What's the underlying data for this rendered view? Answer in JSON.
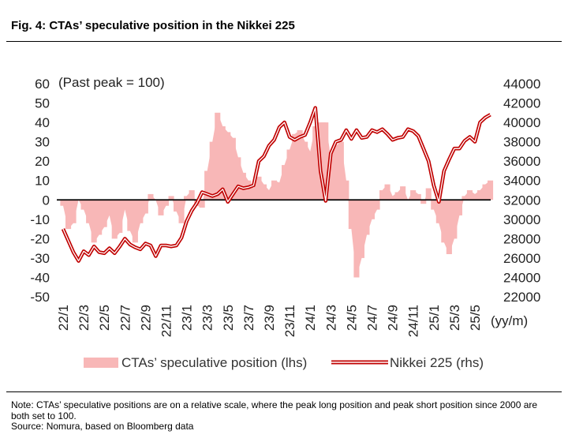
{
  "title": "Fig. 4: CTAs’ speculative position in the Nikkei 225",
  "chart_data": {
    "type": "area+line",
    "annotation": "(Past peak = 100)",
    "x_unit_label": "(yy/m)",
    "x_labels": [
      "22/1",
      "22/3",
      "22/5",
      "22/7",
      "22/9",
      "22/11",
      "23/1",
      "23/3",
      "23/5",
      "23/7",
      "23/9",
      "23/11",
      "24/1",
      "24/3",
      "24/5",
      "24/7",
      "24/9",
      "24/11",
      "25/1",
      "25/3",
      "25/5"
    ],
    "y_left_ticks": [
      60,
      50,
      40,
      30,
      20,
      10,
      0,
      -10,
      -20,
      -30,
      -40,
      -50
    ],
    "y_right_ticks": [
      44000,
      42000,
      40000,
      38000,
      36000,
      34000,
      32000,
      30000,
      28000,
      26000,
      24000,
      22000
    ],
    "ylim_left": [
      -50,
      60
    ],
    "ylim_right": [
      22000,
      44000
    ],
    "series": [
      {
        "name": "CTAs’ speculative position (lhs)",
        "axis": "left",
        "type": "area",
        "color": "#f8b7b7",
        "x": [
          0,
          0.5,
          1,
          1.5,
          2,
          2.5,
          3,
          3.5,
          4,
          4.5,
          5,
          5.5,
          6,
          6.5,
          7,
          7.5,
          8,
          8.5,
          9,
          9.5,
          10,
          10.5,
          11,
          11.5,
          12,
          12.5,
          13,
          13.5,
          14,
          14.5,
          15,
          15.5,
          16,
          16.5,
          17,
          17.5,
          18,
          18.5,
          19,
          19.5,
          20,
          20.5,
          21,
          21.5,
          22,
          22.5,
          23,
          23.5,
          24,
          24.5,
          25,
          25.5,
          26,
          26.5,
          27,
          27.5,
          28,
          28.5,
          29,
          29.5,
          30,
          30.5,
          31,
          31.5,
          32,
          32.5,
          33,
          33.5,
          34,
          34.5,
          35,
          35.5,
          36,
          36.5,
          37,
          37.5,
          38,
          38.5,
          39,
          39.5,
          40,
          40.5,
          41,
          41.5
        ],
        "values": [
          -3,
          -15,
          -12,
          0,
          -5,
          -12,
          -22,
          -18,
          -14,
          -8,
          -20,
          -17,
          -5,
          -16,
          -22,
          -12,
          -7,
          3,
          0,
          -8,
          -3,
          2,
          -6,
          -12,
          2,
          5,
          -3,
          -4,
          15,
          30,
          45,
          38,
          35,
          32,
          22,
          14,
          10,
          6,
          12,
          8,
          5,
          10,
          9,
          18,
          26,
          34,
          36,
          30,
          25,
          38,
          40,
          40,
          22,
          28,
          30,
          10,
          -15,
          -40,
          -30,
          -18,
          -10,
          -5,
          5,
          8,
          2,
          4,
          7,
          0,
          5,
          3,
          -2,
          6,
          -5,
          -12,
          -22,
          -28,
          -20,
          -8,
          2,
          5,
          3,
          5,
          8,
          10
        ]
      },
      {
        "name": "Nikkei 225 (rhs)",
        "axis": "right",
        "type": "line",
        "color": "#c00000",
        "x": [
          0,
          0.5,
          1,
          1.5,
          2,
          2.5,
          3,
          3.5,
          4,
          4.5,
          5,
          5.5,
          6,
          6.5,
          7,
          7.5,
          8,
          8.5,
          9,
          9.5,
          10,
          10.5,
          11,
          11.5,
          12,
          12.5,
          13,
          13.5,
          14,
          14.5,
          15,
          15.5,
          16,
          16.5,
          17,
          17.5,
          18,
          18.5,
          19,
          19.5,
          20,
          20.5,
          21,
          21.5,
          22,
          22.5,
          23,
          23.5,
          24,
          24.5,
          25,
          25.5,
          26,
          26.5,
          27,
          27.5,
          28,
          28.5,
          29,
          29.5,
          30,
          30.5,
          31,
          31.5,
          32,
          32.5,
          33,
          33.5,
          34,
          34.5,
          35,
          35.5,
          36,
          36.5,
          37,
          37.5,
          38,
          38.5,
          39,
          39.5,
          40,
          40.5,
          41,
          41.5
        ],
        "values": [
          29000,
          27800,
          26600,
          25700,
          26700,
          26300,
          27200,
          26600,
          26500,
          27000,
          26500,
          27200,
          28000,
          27400,
          27100,
          26900,
          27500,
          27300,
          26200,
          27300,
          27300,
          27200,
          27300,
          28100,
          29800,
          30900,
          31700,
          32800,
          32600,
          32400,
          32600,
          33100,
          31800,
          32600,
          33400,
          33200,
          33300,
          33500,
          36000,
          36500,
          37600,
          38200,
          39500,
          40000,
          38500,
          38200,
          38500,
          38700,
          40000,
          41500,
          35000,
          31900,
          36800,
          38000,
          38200,
          39200,
          38300,
          39200,
          38400,
          38500,
          39200,
          39000,
          39300,
          38800,
          38200,
          38400,
          38500,
          39300,
          39100,
          38600,
          37300,
          36000,
          33500,
          31800,
          35000,
          36200,
          37300,
          37300,
          38100,
          38500,
          38000,
          40000,
          40500,
          40800
        ]
      }
    ],
    "legend": [
      {
        "label": "CTAs’ speculative position (lhs)"
      },
      {
        "label": "Nikkei 225 (rhs)"
      }
    ],
    "legend_position": "bottom",
    "grid": false
  },
  "notes": {
    "note": "Note: CTAs’ speculative positions are on a relative scale, where the peak long position and peak short position since 2000 are both set to 100.",
    "source": "Source: Nomura, based on Bloomberg data"
  },
  "colors": {
    "area": "#f8b7b7",
    "line": "#c00000",
    "zero_line": "#000000"
  }
}
